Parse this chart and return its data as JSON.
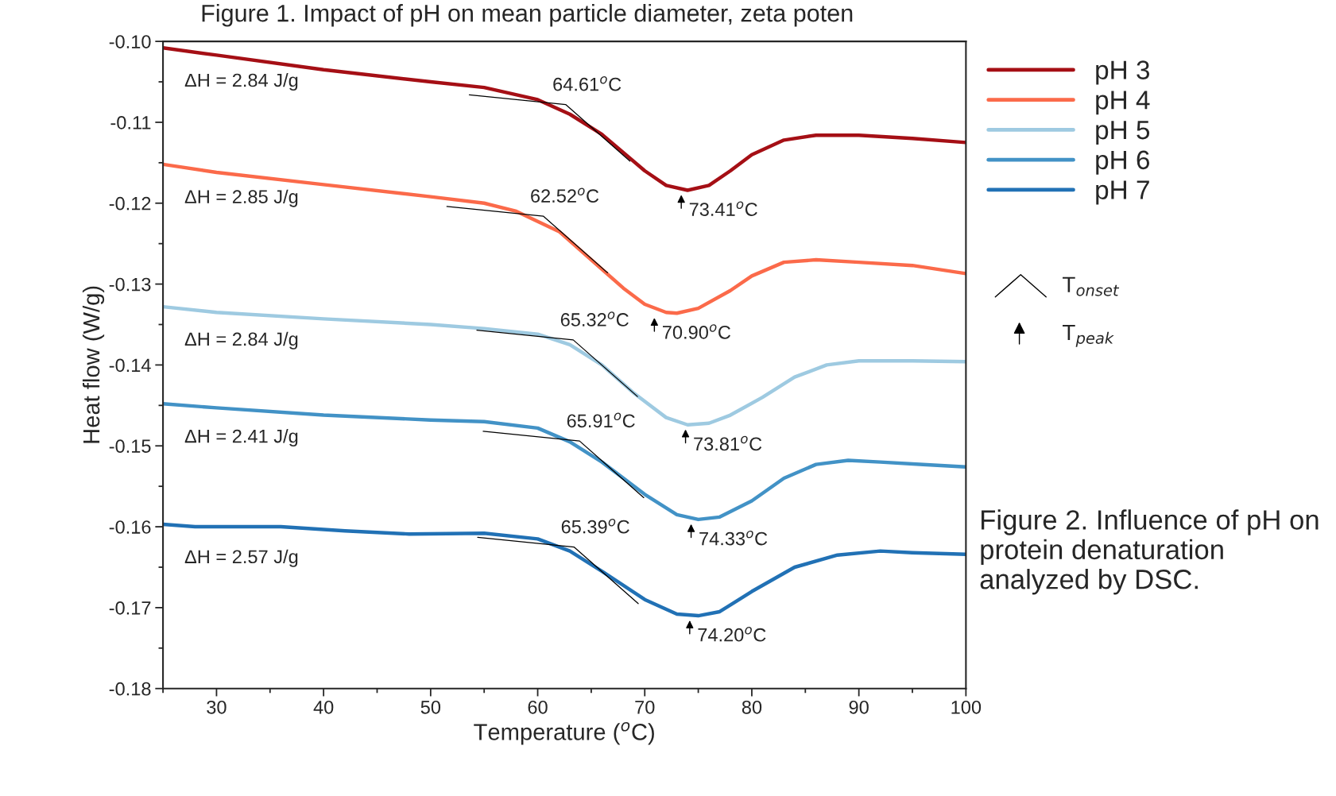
{
  "chart_data": {
    "type": "line",
    "xlabel": "Temperature ($^{o}$C)",
    "ylabel": "Heat flow (W/g)",
    "xlim": [
      25,
      100
    ],
    "xticks": [
      30,
      40,
      50,
      60,
      70,
      80,
      90,
      100
    ],
    "ylim": [
      -0.18,
      -0.1
    ],
    "yticks": [
      -0.18,
      -0.17,
      -0.16,
      -0.15,
      -0.14,
      -0.13,
      -0.12,
      -0.11,
      {
        "value": -0.1,
        "label": "-0.10"
      }
    ],
    "grid": false,
    "legend": "top right",
    "marker": "none",
    "line_style": "solid",
    "series": [
      {
        "name": "pH 3",
        "color": "#a50f15",
        "x": [
          25,
          30,
          40,
          50,
          55,
          60,
          63,
          66,
          70,
          72,
          74,
          76,
          78,
          80,
          83,
          86,
          90,
          95,
          100
        ],
        "values": [
          -0.1008,
          -0.1017,
          -0.1035,
          -0.105,
          -0.1057,
          -0.1072,
          -0.109,
          -0.1115,
          -0.116,
          -0.1178,
          -0.1184,
          -0.1178,
          -0.116,
          -0.114,
          -0.1122,
          -0.1116,
          -0.1116,
          -0.112,
          -0.1125
        ]
      },
      {
        "name": "pH 4",
        "color": "#fb6a4a",
        "x": [
          25,
          30,
          40,
          50,
          55,
          58,
          62,
          65,
          68,
          70,
          72,
          73,
          75,
          78,
          80,
          83,
          86,
          90,
          95,
          100
        ],
        "values": [
          -0.1152,
          -0.1162,
          -0.1177,
          -0.1192,
          -0.12,
          -0.121,
          -0.1235,
          -0.127,
          -0.1305,
          -0.1325,
          -0.1335,
          -0.1336,
          -0.133,
          -0.1308,
          -0.129,
          -0.1273,
          -0.127,
          -0.1273,
          -0.1277,
          -0.1287
        ]
      },
      {
        "name": "pH 5",
        "color": "#9ecae1",
        "x": [
          25,
          30,
          40,
          50,
          55,
          60,
          63,
          66,
          69,
          72,
          74,
          76,
          78,
          81,
          84,
          87,
          90,
          95,
          100
        ],
        "values": [
          -0.1328,
          -0.1335,
          -0.1343,
          -0.135,
          -0.1355,
          -0.1362,
          -0.1375,
          -0.14,
          -0.1435,
          -0.1465,
          -0.1474,
          -0.1472,
          -0.1462,
          -0.144,
          -0.1415,
          -0.14,
          -0.1395,
          -0.1395,
          -0.1396
        ]
      },
      {
        "name": "pH 6",
        "color": "#4292c6",
        "x": [
          25,
          30,
          40,
          50,
          55,
          60,
          63,
          66,
          70,
          73,
          75,
          77,
          80,
          83,
          86,
          89,
          92,
          96,
          100
        ],
        "values": [
          -0.1448,
          -0.1453,
          -0.1462,
          -0.1468,
          -0.147,
          -0.1478,
          -0.1495,
          -0.152,
          -0.156,
          -0.1585,
          -0.1591,
          -0.1588,
          -0.1568,
          -0.154,
          -0.1523,
          -0.1518,
          -0.152,
          -0.1523,
          -0.1526
        ]
      },
      {
        "name": "pH 7",
        "color": "#2171b5",
        "x": [
          25,
          28,
          36,
          42,
          48,
          55,
          60,
          63,
          66,
          70,
          73,
          75,
          77,
          80,
          84,
          88,
          92,
          95,
          100
        ],
        "values": [
          -0.1597,
          -0.16,
          -0.16,
          -0.1605,
          -0.1609,
          -0.1608,
          -0.1615,
          -0.163,
          -0.1655,
          -0.169,
          -0.1708,
          -0.171,
          -0.1705,
          -0.168,
          -0.165,
          -0.1635,
          -0.163,
          -0.1632,
          -0.1634
        ]
      }
    ],
    "annotations": [
      "ΔH = 2.84 J/g",
      "ΔH = 2.85 J/g",
      "ΔH = 2.84 J/g",
      "ΔH = 2.41 J/g",
      "ΔH = 2.57 J/g",
      {
        "text": "64.61$^{o}$C",
        "x": 64.61,
        "y": -0.1103
      },
      {
        "text": "62.52$^{o}$C",
        "x": 62.52,
        "y": -0.1241
      },
      {
        "text": "65.32$^{o}$C",
        "x": 65.32,
        "y": -0.1394
      },
      {
        "text": "65.91$^{o}$C",
        "x": 65.91,
        "y": -0.1519
      },
      {
        "text": "65.39$^{o}$C",
        "x": 65.39,
        "y": -0.165
      },
      {
        "text": "73.41$^{o}$C",
        "x": 73.41,
        "y": -0.1184
      },
      {
        "text": "70.90$^{o}$C",
        "x": 70.9,
        "y": -0.1336
      },
      {
        "text": "73.81$^{o}$C",
        "x": 73.81,
        "y": -0.1474
      },
      {
        "text": "74.33$^{o}$C",
        "x": 74.33,
        "y": -0.1591
      },
      {
        "text": "74.20$^{o}$C",
        "x": 74.2,
        "y": -0.171
      },
      "T$_{onset}$",
      "T$_{peak}$",
      "Figure 2. Influence of pH on protein denaturation analyzed by DSC.",
      "Figure 1. Impact of pH on mean particle diameter, zeta poten"
    ]
  }
}
